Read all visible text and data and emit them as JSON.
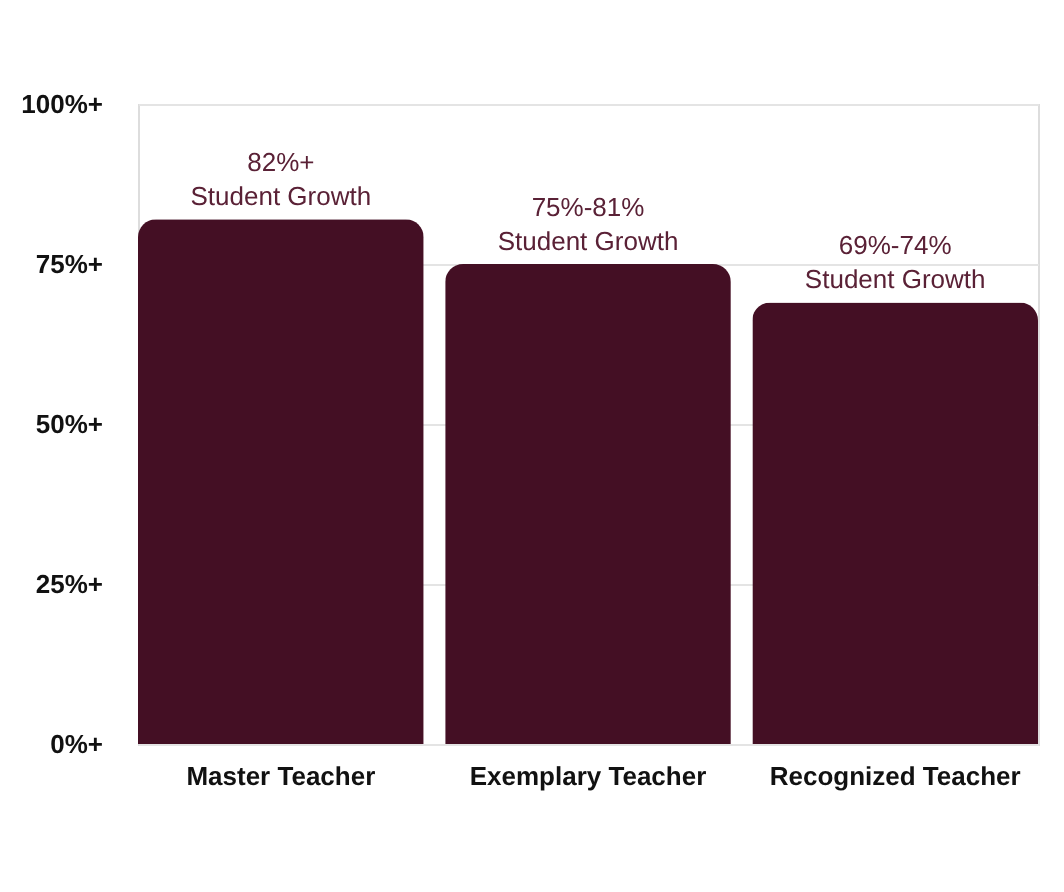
{
  "chart_data": {
    "type": "bar",
    "categories": [
      "Master Teacher",
      "Exemplary Teacher",
      "Recognized Teacher"
    ],
    "values": [
      82,
      75,
      69
    ],
    "color": "#440f24",
    "value_labels": [
      "82%+\nStudent Growth",
      "75%-81%\nStudent Growth",
      "69%-74%\nStudent Growth"
    ],
    "ylim": [
      0,
      100
    ],
    "yticks": [
      {
        "value": 0,
        "label": "0%+"
      },
      {
        "value": 25,
        "label": "25%+"
      },
      {
        "value": 50,
        "label": "50%+"
      },
      {
        "value": 75,
        "label": "75%+"
      },
      {
        "value": 100,
        "label": "100%+"
      }
    ],
    "grid": "y"
  }
}
